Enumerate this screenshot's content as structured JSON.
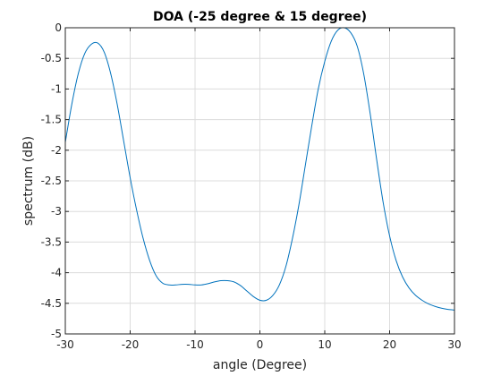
{
  "chart_data": {
    "type": "line",
    "title": "DOA (-25 degree & 15 degree)",
    "xlabel": "angle (Degree)",
    "ylabel": "spectrum (dB)",
    "xlim": [
      -30,
      30
    ],
    "ylim": [
      -5,
      0
    ],
    "xticks": [
      -30,
      -20,
      -10,
      0,
      10,
      20,
      30
    ],
    "yticks": [
      0,
      -0.5,
      -1,
      -1.5,
      -2,
      -2.5,
      -3,
      -3.5,
      -4,
      -4.5,
      -5
    ],
    "grid": true,
    "series": [
      {
        "color": "#0072bd",
        "x": [
          -30,
          -29,
          -28,
          -27,
          -26,
          -25,
          -24,
          -23,
          -22,
          -21,
          -20,
          -19,
          -18,
          -17,
          -16,
          -15,
          -14,
          -13,
          -12,
          -11,
          -10,
          -9,
          -8,
          -7,
          -6,
          -5,
          -4,
          -3,
          -2,
          -1,
          0,
          1,
          2,
          3,
          4,
          5,
          6,
          7,
          8,
          9,
          10,
          11,
          12,
          13,
          14,
          15,
          16,
          17,
          18,
          19,
          20,
          21,
          22,
          23,
          24,
          25,
          26,
          27,
          28,
          29,
          30
        ],
        "y": [
          -1.87,
          -1.25,
          -0.75,
          -0.42,
          -0.27,
          -0.25,
          -0.4,
          -0.75,
          -1.25,
          -1.85,
          -2.45,
          -2.98,
          -3.44,
          -3.8,
          -4.05,
          -4.17,
          -4.2,
          -4.2,
          -4.19,
          -4.19,
          -4.2,
          -4.2,
          -4.18,
          -4.15,
          -4.13,
          -4.13,
          -4.15,
          -4.21,
          -4.3,
          -4.39,
          -4.45,
          -4.45,
          -4.37,
          -4.2,
          -3.9,
          -3.45,
          -2.9,
          -2.25,
          -1.6,
          -1.0,
          -0.55,
          -0.22,
          -0.04,
          0.0,
          -0.08,
          -0.3,
          -0.75,
          -1.4,
          -2.15,
          -2.85,
          -3.4,
          -3.8,
          -4.07,
          -4.25,
          -4.37,
          -4.45,
          -4.51,
          -4.55,
          -4.58,
          -4.6,
          -4.61
        ]
      }
    ]
  }
}
